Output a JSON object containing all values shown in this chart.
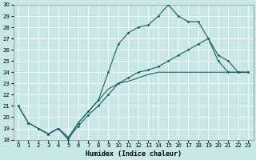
{
  "xlabel": "Humidex (Indice chaleur)",
  "background_color": "#c8e8e8",
  "grid_color": "#ffffff",
  "line_color": "#1a6060",
  "xlim": [
    -0.5,
    23.5
  ],
  "ylim": [
    18,
    30
  ],
  "xticks": [
    0,
    1,
    2,
    3,
    4,
    5,
    6,
    7,
    8,
    9,
    10,
    11,
    12,
    13,
    14,
    15,
    16,
    17,
    18,
    19,
    20,
    21,
    22,
    23
  ],
  "yticks": [
    18,
    19,
    20,
    21,
    22,
    23,
    24,
    25,
    26,
    27,
    28,
    29,
    30
  ],
  "line1_x": [
    0,
    1,
    2,
    3,
    4,
    5,
    6,
    7,
    8,
    9,
    10,
    11,
    12,
    13,
    14,
    15,
    16,
    17,
    18,
    19,
    20,
    21,
    22,
    23
  ],
  "line1_y": [
    21,
    19.5,
    19,
    18.5,
    19,
    18,
    19.5,
    20.5,
    21.5,
    24,
    26.5,
    27.5,
    28,
    28.2,
    29,
    30,
    29,
    28.5,
    28.5,
    27,
    25.5,
    25,
    24,
    24
  ],
  "line2_x": [
    0,
    1,
    2,
    3,
    4,
    5,
    6,
    7,
    8,
    9,
    10,
    11,
    12,
    13,
    14,
    15,
    16,
    17,
    18,
    19,
    20,
    21,
    22,
    23
  ],
  "line2_y": [
    21,
    19.5,
    19,
    18.5,
    19,
    18.2,
    19.2,
    20.2,
    21,
    22,
    23,
    23.5,
    24,
    24.2,
    24.5,
    25,
    25.5,
    26,
    26.5,
    27,
    25,
    24,
    24,
    24
  ],
  "line3_x": [
    2,
    3,
    4,
    5,
    6,
    7,
    8,
    9,
    10,
    11,
    12,
    13,
    14,
    15,
    16,
    17,
    18,
    19,
    20,
    21,
    22,
    23
  ],
  "line3_y": [
    19,
    18.5,
    19,
    18.2,
    19.5,
    20.5,
    21.5,
    22.5,
    23,
    23.2,
    23.5,
    23.8,
    24,
    24,
    24,
    24,
    24,
    24,
    24,
    24,
    24,
    24
  ]
}
